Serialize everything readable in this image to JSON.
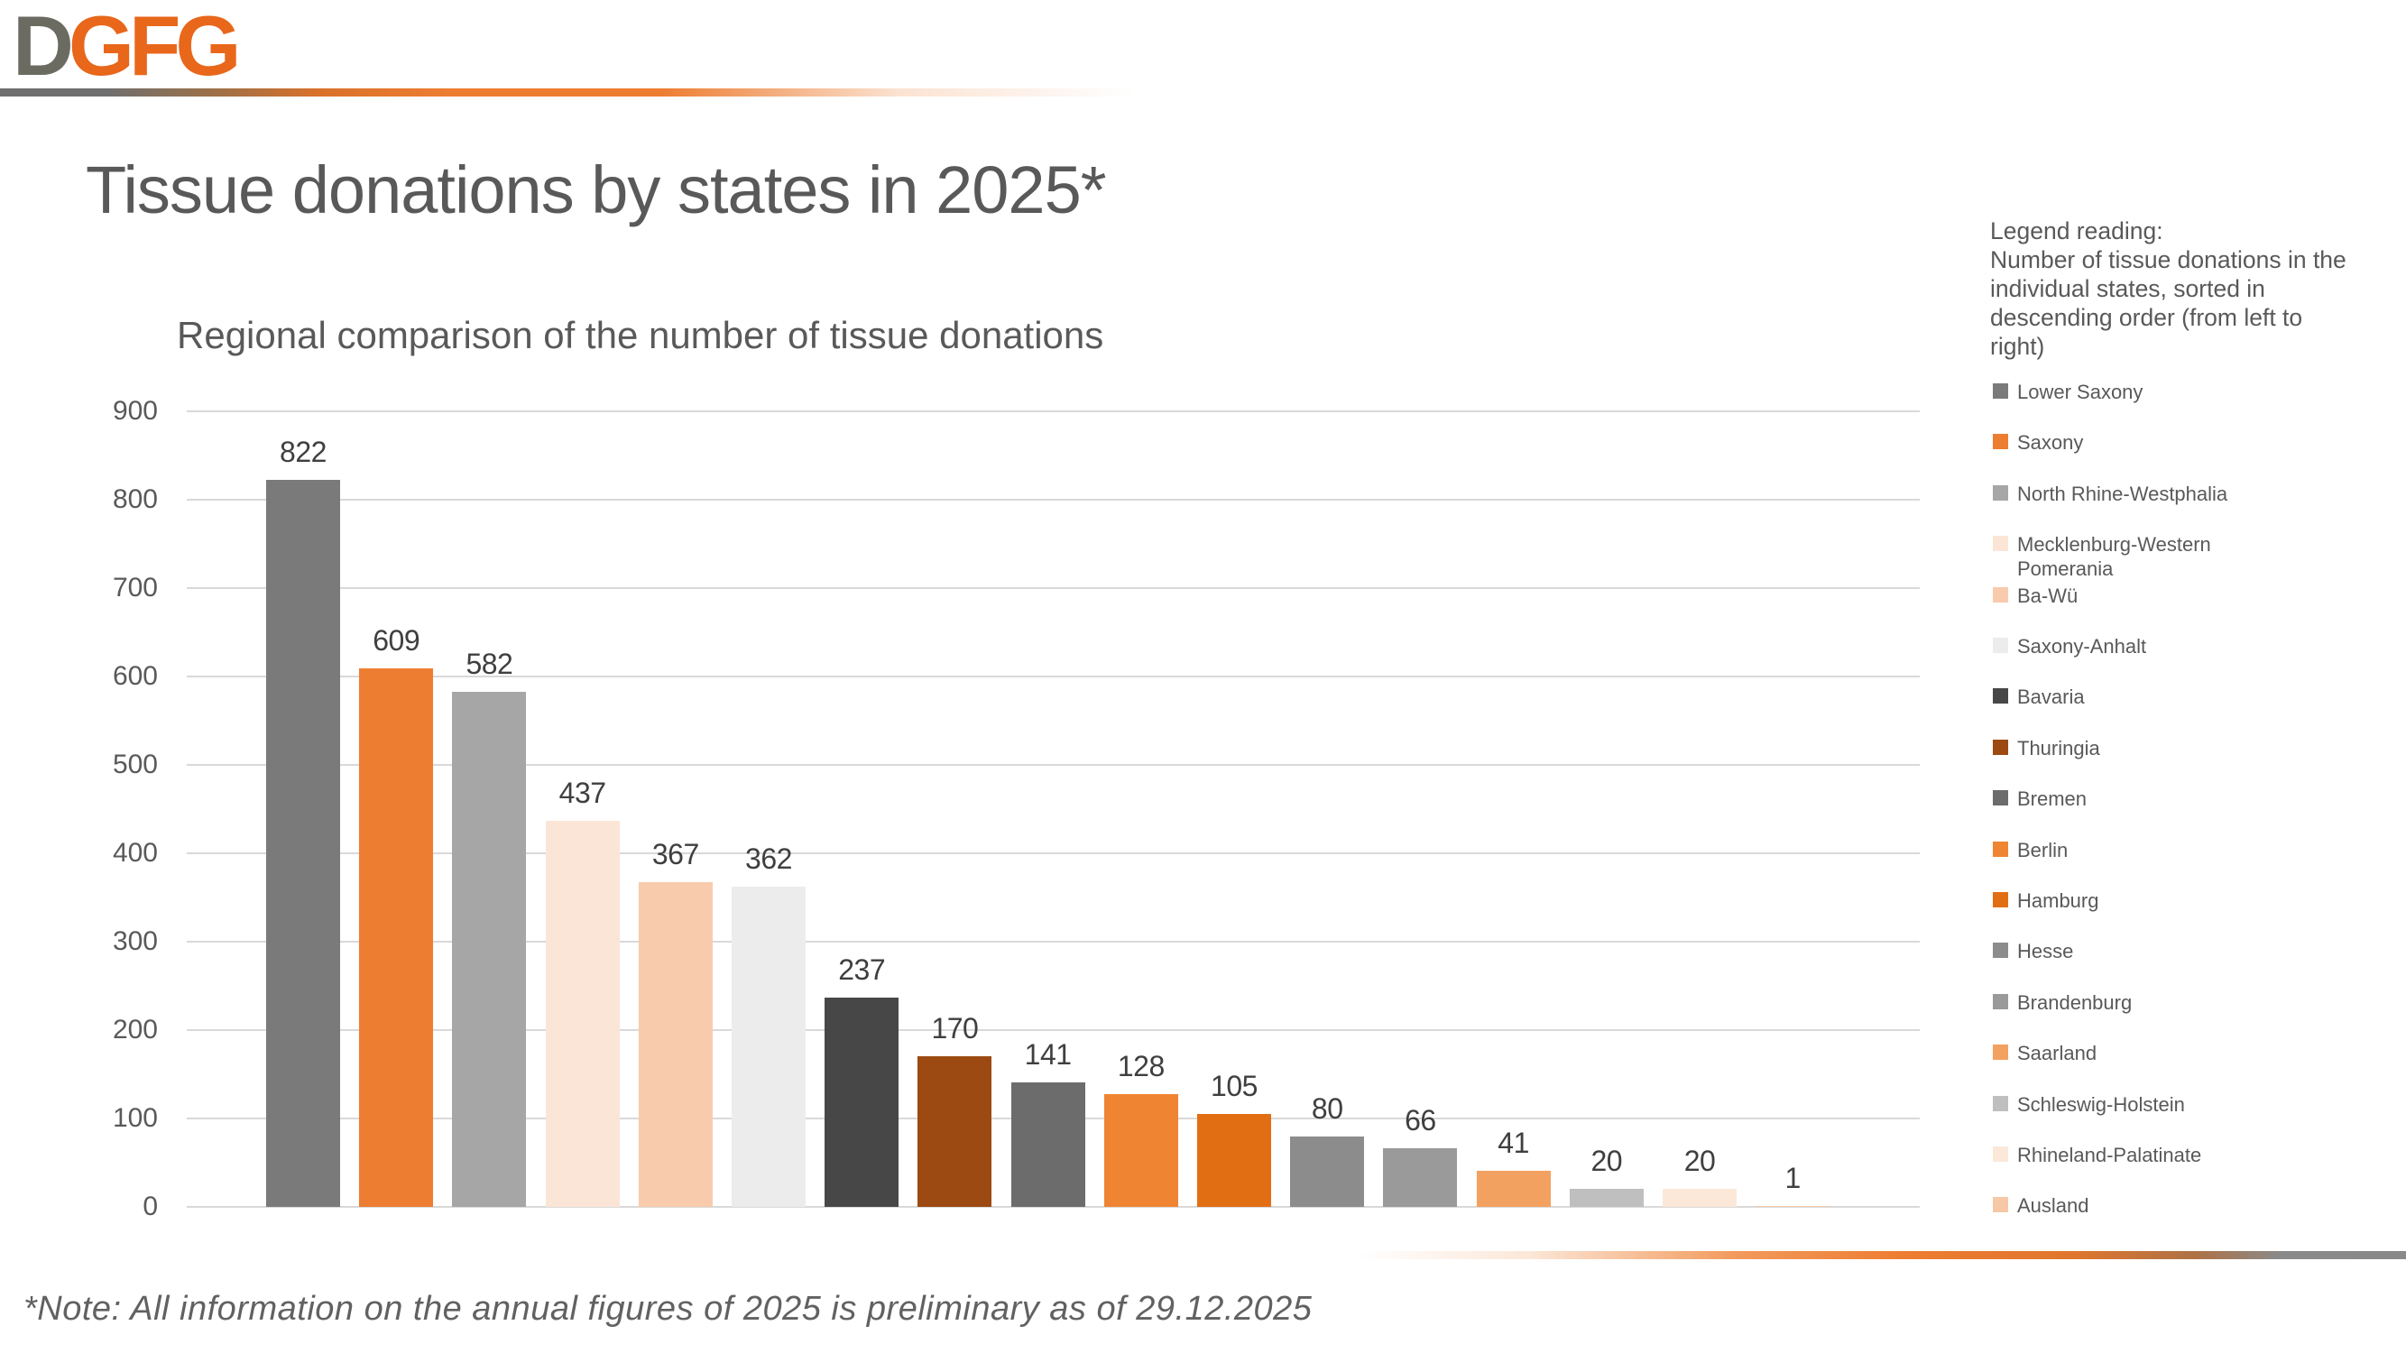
{
  "logo": {
    "gray_part": "D",
    "orange_part": "GFG"
  },
  "page_title": "Tissue donations by states in 2025*",
  "chart_data": {
    "type": "bar",
    "title": "Regional comparison of the number of tissue donations",
    "categories": [
      "Lower Saxony",
      "Saxony",
      "North Rhine-Westphalia",
      "Mecklenburg-Western Pomerania",
      "Ba-Wü",
      "Saxony-Anhalt",
      "Bavaria",
      "Thuringia",
      "Bremen",
      "Berlin",
      "Hamburg",
      "Hesse",
      "Brandenburg",
      "Saarland",
      "Schleswig-Holstein",
      "Rhineland-Palatinate",
      "Ausland"
    ],
    "values": [
      822,
      609,
      582,
      437,
      367,
      362,
      237,
      170,
      141,
      128,
      105,
      80,
      66,
      41,
      20,
      20,
      1
    ],
    "colors": [
      "#7A7A7A",
      "#ED7D31",
      "#A6A6A6",
      "#FBE5D6",
      "#F8CBAD",
      "#ECECEC",
      "#474747",
      "#9C4A12",
      "#6C6C6C",
      "#EF8433",
      "#E26E14",
      "#8C8C8C",
      "#9A9A9A",
      "#F2A161",
      "#BFBFBF",
      "#FBE8D9",
      "#F6C8A6"
    ],
    "xlabel": "",
    "ylabel": "",
    "ylim": [
      0,
      900
    ],
    "yticks": [
      0,
      100,
      200,
      300,
      400,
      500,
      600,
      700,
      800,
      900
    ],
    "grid": true,
    "value_labels": true,
    "legend_position": "right",
    "sort": "descending"
  },
  "legend": {
    "heading_lines": [
      "Legend reading:",
      "Number of tissue donations in the",
      "individual states, sorted in",
      "descending order (from left to",
      "right)"
    ]
  },
  "footer": {
    "note": "*Note: All information on the annual figures of 2025 is preliminary as of 29.12.2025"
  },
  "colors": {
    "accent_orange": "#ED7D31",
    "accent_gray": "#6F6F6F",
    "grid": "#D9D9D9",
    "heading_text": "#595959",
    "value_label_text": "#3F3F3F"
  }
}
